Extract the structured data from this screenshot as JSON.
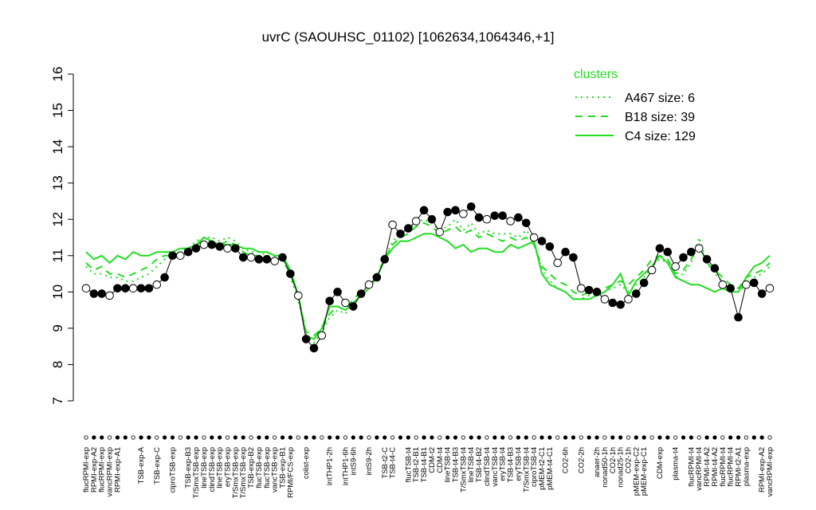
{
  "chart_data": {
    "type": "line",
    "title": "uvrC (SAOUHSC_01102) [1062634,1064346,+1]",
    "legend_title": "clusters",
    "legend_position": "top-right",
    "color": "#000000",
    "ylim": [
      7,
      16
    ],
    "yticks": [
      7,
      8,
      9,
      10,
      11,
      12,
      13,
      14,
      15,
      16
    ],
    "categories": [
      "flucRPMI-exp",
      "RPMI-exp-A2",
      "flucRPMI-exp",
      "vancRPMI-exp",
      "RPMI-exp-A1",
      null,
      null,
      "TSB-exp-A",
      null,
      "TSB-exp-C",
      null,
      "ciproTSB-exp",
      null,
      "TSB-exp-B3",
      "T/SmxTSB-exp",
      "lineTSB-exp",
      "clindTSB-exp",
      "lineTSB-exp",
      "eryTSB-exp",
      "T/SmxTSB-exp",
      "T/SmxTSB-exp",
      "TSB-exp-B2",
      "flucTSB-exp",
      "flucTSB-exp",
      "vancTSB-exp",
      "TSB-exp-B1",
      "RPMI/FCS-exp",
      null,
      "colist-exp",
      null,
      null,
      "intTHP1-2h",
      null,
      "intTHP1-6h",
      "intS9-6h",
      null,
      "intS9-2h",
      null,
      "TSB-t2-C",
      "TSB-t4-C",
      null,
      "flucTSB-t4",
      "TSB-t2-B1",
      "TSB-t4-B1",
      "CDM-t2",
      "CDM-t4",
      "lineTSB-t4",
      "TSB-t4-B3",
      "T/SmxTSB-t4",
      "lineTSB-t4",
      "TSB-t4-B2",
      "clindTSB-t4",
      "vancTSB-t4",
      "eryTSB-t4",
      "TSB-t4-B3",
      "eryTSB-t4",
      "T/SmxTSB-t4",
      "ciproTSB-t4",
      "pMEM-t2-C1",
      "pMEM-t4-C1",
      null,
      "CO2-6h",
      null,
      "CO2-2h",
      null,
      "anaer-2h",
      "nonad50-1h",
      "CO2-1h",
      "nonad25-1h",
      "CO2-1h",
      "pMEM-exp-C2",
      "pMEM-exp-C1",
      null,
      "CDM-exp",
      null,
      "plasma-t4",
      null,
      "flucRPMI-t4",
      "vancRPMI-t4",
      "RPMI-t4-A2",
      "RPMI-t4-A2",
      "flucRPMI-t4",
      "flucRPMI-t4",
      "RPMI-t2-A1",
      "plasma-exp",
      null,
      "RPMI-exp-A2",
      "vancRPMI-exp"
    ],
    "values": [
      10.1,
      9.95,
      9.95,
      9.9,
      10.1,
      10.1,
      10.1,
      10.1,
      10.1,
      10.2,
      10.4,
      11.0,
      11.0,
      11.1,
      11.2,
      11.3,
      11.3,
      11.25,
      11.2,
      11.2,
      10.95,
      10.95,
      10.9,
      10.9,
      10.85,
      10.95,
      10.5,
      9.9,
      8.7,
      8.45,
      8.8,
      9.75,
      10.0,
      9.7,
      9.6,
      9.95,
      10.2,
      10.4,
      10.9,
      11.85,
      11.6,
      11.75,
      11.95,
      12.25,
      12.0,
      11.65,
      12.2,
      12.25,
      12.15,
      12.35,
      12.05,
      12.0,
      12.1,
      12.1,
      11.95,
      12.05,
      11.9,
      11.5,
      11.4,
      11.25,
      10.8,
      11.1,
      10.95,
      10.1,
      10.05,
      10.0,
      9.8,
      9.7,
      9.65,
      9.8,
      9.95,
      10.25,
      10.6,
      11.2,
      11.1,
      10.7,
      10.95,
      11.1,
      11.2,
      10.9,
      10.65,
      10.2,
      10.1,
      9.3,
      10.2,
      10.25,
      9.95,
      10.1
    ],
    "series": [
      {
        "name": "A467 size: 6",
        "color": "#22dd22",
        "dash": "dotted",
        "values": [
          10.7,
          10.5,
          10.5,
          10.4,
          10.4,
          10.3,
          10.3,
          10.4,
          10.5,
          10.7,
          10.9,
          11.0,
          11.1,
          11.2,
          11.4,
          11.5,
          11.5,
          11.4,
          11.5,
          11.4,
          11.2,
          11.1,
          11.1,
          11.0,
          11.0,
          10.9,
          10.4,
          9.8,
          8.8,
          8.6,
          8.9,
          9.3,
          9.5,
          9.4,
          9.7,
          9.9,
          10.1,
          10.4,
          10.9,
          11.4,
          11.6,
          11.7,
          11.9,
          12.0,
          11.9,
          11.7,
          11.8,
          12.0,
          11.7,
          11.9,
          11.6,
          11.7,
          11.6,
          11.6,
          11.6,
          11.5,
          11.7,
          11.4,
          10.6,
          10.3,
          10.1,
          10.0,
          9.8,
          9.8,
          9.9,
          9.9,
          10.0,
          10.1,
          10.2,
          10.0,
          10.2,
          10.4,
          10.7,
          10.9,
          10.8,
          10.4,
          10.5,
          10.8,
          11.5,
          10.8,
          10.5,
          10.3,
          10.1,
          10.0,
          10.2,
          10.4,
          10.5,
          10.7
        ]
      },
      {
        "name": "B18 size: 39",
        "color": "#22dd22",
        "dash": "dashed",
        "values": [
          10.8,
          10.6,
          10.7,
          10.5,
          10.5,
          10.4,
          10.5,
          10.6,
          10.7,
          10.9,
          11.0,
          11.0,
          11.1,
          11.1,
          11.3,
          11.4,
          11.4,
          11.3,
          11.4,
          11.3,
          11.1,
          11.0,
          11.0,
          10.9,
          10.9,
          10.9,
          10.5,
          9.9,
          8.9,
          8.8,
          9.0,
          9.4,
          9.6,
          9.5,
          9.8,
          10.0,
          10.2,
          10.5,
          10.9,
          11.3,
          11.5,
          11.6,
          11.8,
          11.9,
          11.8,
          11.6,
          11.7,
          11.8,
          11.6,
          11.7,
          11.5,
          11.6,
          11.5,
          11.4,
          11.5,
          11.4,
          11.5,
          11.3,
          10.7,
          10.5,
          10.3,
          10.2,
          10.0,
          9.9,
          10.0,
          10.0,
          10.1,
          10.2,
          10.3,
          10.2,
          10.4,
          10.6,
          10.9,
          11.0,
          10.9,
          10.5,
          10.6,
          10.9,
          11.3,
          10.8,
          10.6,
          10.4,
          10.2,
          10.1,
          10.4,
          10.5,
          10.6,
          10.8
        ]
      },
      {
        "name": "C4 size: 129",
        "color": "#22dd22",
        "dash": "solid",
        "values": [
          11.1,
          10.9,
          11.0,
          10.8,
          11.0,
          10.9,
          11.1,
          11.0,
          11.0,
          11.1,
          11.1,
          11.1,
          11.2,
          11.2,
          11.3,
          11.5,
          11.4,
          11.3,
          11.3,
          11.3,
          11.2,
          11.2,
          11.1,
          11.1,
          11.0,
          11.0,
          10.6,
          9.9,
          8.8,
          8.7,
          9.0,
          9.6,
          9.6,
          9.5,
          9.7,
          9.9,
          10.1,
          10.4,
          10.9,
          11.2,
          11.4,
          11.4,
          11.5,
          11.6,
          11.6,
          11.5,
          11.4,
          11.2,
          11.3,
          11.1,
          11.2,
          11.2,
          11.1,
          11.1,
          11.3,
          11.2,
          11.3,
          11.4,
          10.5,
          10.2,
          10.1,
          10.0,
          9.8,
          9.8,
          9.8,
          9.9,
          10.0,
          10.2,
          10.5,
          9.9,
          10.3,
          10.5,
          10.7,
          11.0,
          10.8,
          10.4,
          10.3,
          10.2,
          10.2,
          10.1,
          10.0,
          10.1,
          10.0,
          10.0,
          10.4,
          10.7,
          10.8,
          11.0
        ]
      }
    ]
  }
}
